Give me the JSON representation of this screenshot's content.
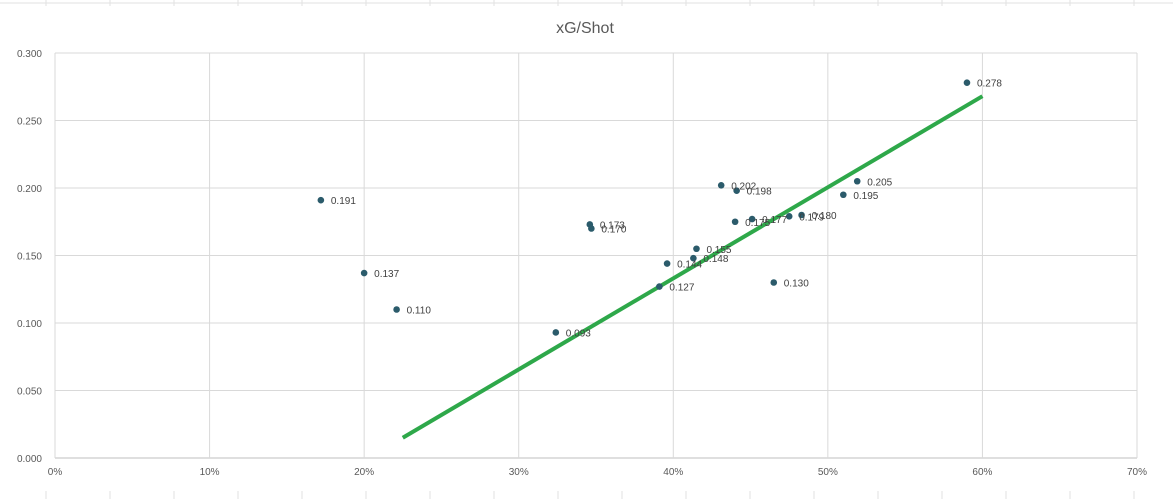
{
  "chart_data": {
    "type": "scatter",
    "title": "xG/Shot",
    "xlabel": "",
    "ylabel": "",
    "xlim": [
      0,
      0.7
    ],
    "ylim": [
      0,
      0.3
    ],
    "x_ticks": [
      0,
      0.1,
      0.2,
      0.3,
      0.4,
      0.5,
      0.6,
      0.7
    ],
    "x_tick_labels": [
      "0%",
      "10%",
      "20%",
      "30%",
      "40%",
      "50%",
      "60%",
      "70%"
    ],
    "y_ticks": [
      0,
      0.05,
      0.1,
      0.15,
      0.2,
      0.25,
      0.3
    ],
    "y_tick_labels": [
      "0.000",
      "0.050",
      "0.100",
      "0.150",
      "0.200",
      "0.250",
      "0.300"
    ],
    "grid": true,
    "legend": "none",
    "marker_color": "#2b5b6b",
    "trendline_color": "#2ea84a",
    "trendline": {
      "x": [
        0.225,
        0.6
      ],
      "y": [
        0.015,
        0.268
      ]
    },
    "points": [
      {
        "x": 0.172,
        "y": 0.191,
        "label": "0.191"
      },
      {
        "x": 0.2,
        "y": 0.137,
        "label": "0.137"
      },
      {
        "x": 0.221,
        "y": 0.11,
        "label": "0.110"
      },
      {
        "x": 0.324,
        "y": 0.093,
        "label": "0.093"
      },
      {
        "x": 0.346,
        "y": 0.173,
        "label": "0.173"
      },
      {
        "x": 0.347,
        "y": 0.17,
        "label": "0.170"
      },
      {
        "x": 0.391,
        "y": 0.127,
        "label": "0.127"
      },
      {
        "x": 0.396,
        "y": 0.144,
        "label": "0.144"
      },
      {
        "x": 0.413,
        "y": 0.148,
        "label": "0.148"
      },
      {
        "x": 0.415,
        "y": 0.155,
        "label": "0.155"
      },
      {
        "x": 0.431,
        "y": 0.202,
        "label": "0.202"
      },
      {
        "x": 0.44,
        "y": 0.175,
        "label": "0.175"
      },
      {
        "x": 0.441,
        "y": 0.198,
        "label": "0.198"
      },
      {
        "x": 0.451,
        "y": 0.177,
        "label": "0.177"
      },
      {
        "x": 0.465,
        "y": 0.13,
        "label": "0.130"
      },
      {
        "x": 0.475,
        "y": 0.179,
        "label": "0.179"
      },
      {
        "x": 0.483,
        "y": 0.18,
        "label": "0.180"
      },
      {
        "x": 0.51,
        "y": 0.195,
        "label": "0.195"
      },
      {
        "x": 0.519,
        "y": 0.205,
        "label": "0.205"
      },
      {
        "x": 0.59,
        "y": 0.278,
        "label": "0.278"
      }
    ]
  }
}
